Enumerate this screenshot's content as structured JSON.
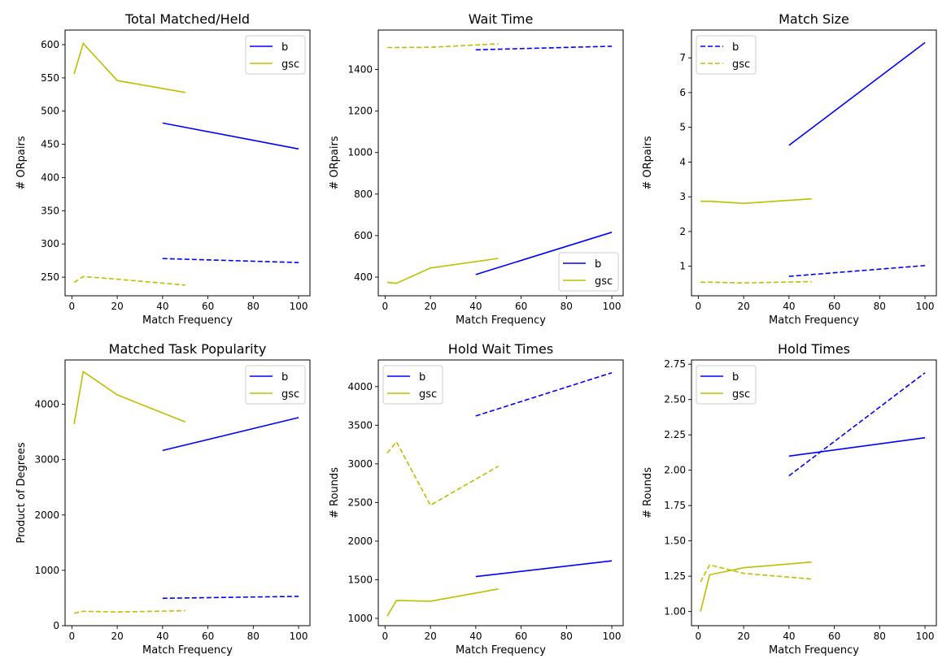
{
  "colors": {
    "b": "#0000ff",
    "gsc": "#bfbf00"
  },
  "chart_data": [
    {
      "type": "line",
      "title": "Total Matched/Held",
      "xlabel": "Match Frequency",
      "ylabel": "# ORpairs",
      "xlim": [
        -3,
        105
      ],
      "ylim": [
        222,
        622
      ],
      "xticks": [
        0,
        20,
        40,
        60,
        80,
        100
      ],
      "yticks": [
        250,
        300,
        350,
        400,
        450,
        500,
        550,
        600
      ],
      "legend": {
        "position": "top-right",
        "entries": [
          {
            "label": "b",
            "color": "b",
            "dash": false
          },
          {
            "label": "gsc",
            "color": "gsc",
            "dash": false
          }
        ]
      },
      "series": [
        {
          "color": "b",
          "dash": false,
          "x": [
            40,
            100
          ],
          "y": [
            482,
            443
          ]
        },
        {
          "color": "b",
          "dash": true,
          "x": [
            40,
            100
          ],
          "y": [
            278,
            272
          ]
        },
        {
          "color": "gsc",
          "dash": false,
          "x": [
            1,
            5,
            20,
            50
          ],
          "y": [
            556,
            602,
            546,
            528
          ]
        },
        {
          "color": "gsc",
          "dash": true,
          "x": [
            1,
            5,
            20,
            50
          ],
          "y": [
            242,
            251,
            247,
            238
          ]
        }
      ]
    },
    {
      "type": "line",
      "title": "Wait Time",
      "xlabel": "Match Frequency",
      "ylabel": "# ORpairs",
      "xlim": [
        -3,
        105
      ],
      "ylim": [
        310,
        1590
      ],
      "xticks": [
        0,
        20,
        40,
        60,
        80,
        100
      ],
      "yticks": [
        400,
        600,
        800,
        1000,
        1200,
        1400
      ],
      "legend": {
        "position": "bottom-right",
        "entries": [
          {
            "label": "b",
            "color": "b",
            "dash": false
          },
          {
            "label": "gsc",
            "color": "gsc",
            "dash": false
          }
        ]
      },
      "series": [
        {
          "color": "b",
          "dash": false,
          "x": [
            40,
            100
          ],
          "y": [
            412,
            616
          ]
        },
        {
          "color": "b",
          "dash": true,
          "x": [
            40,
            100
          ],
          "y": [
            1495,
            1512
          ]
        },
        {
          "color": "gsc",
          "dash": false,
          "x": [
            1,
            5,
            20,
            50
          ],
          "y": [
            375,
            370,
            444,
            490
          ]
        },
        {
          "color": "gsc",
          "dash": true,
          "x": [
            1,
            5,
            20,
            50
          ],
          "y": [
            1506,
            1506,
            1507,
            1524
          ]
        }
      ]
    },
    {
      "type": "line",
      "title": "Match Size",
      "xlabel": "Match Frequency",
      "ylabel": "# ORpairs",
      "xlim": [
        -3,
        105
      ],
      "ylim": [
        0.15,
        7.8
      ],
      "xticks": [
        0,
        20,
        40,
        60,
        80,
        100
      ],
      "yticks": [
        1,
        2,
        3,
        4,
        5,
        6,
        7
      ],
      "legend": {
        "position": "top-left",
        "entries": [
          {
            "label": "b",
            "color": "b",
            "dash": true
          },
          {
            "label": "gsc",
            "color": "gsc",
            "dash": true
          }
        ]
      },
      "series": [
        {
          "color": "b",
          "dash": false,
          "x": [
            40,
            100
          ],
          "y": [
            4.48,
            7.44
          ]
        },
        {
          "color": "b",
          "dash": true,
          "x": [
            40,
            100
          ],
          "y": [
            0.71,
            1.02
          ]
        },
        {
          "color": "gsc",
          "dash": false,
          "x": [
            1,
            5,
            20,
            50
          ],
          "y": [
            2.87,
            2.87,
            2.81,
            2.94
          ]
        },
        {
          "color": "gsc",
          "dash": true,
          "x": [
            1,
            5,
            20,
            50
          ],
          "y": [
            0.54,
            0.54,
            0.52,
            0.56
          ]
        }
      ]
    },
    {
      "type": "line",
      "title": "Matched Task Popularity",
      "xlabel": "Match Frequency",
      "ylabel": "Product of Degrees",
      "xlim": [
        -3,
        105
      ],
      "ylim": [
        0,
        4800
      ],
      "xticks": [
        0,
        20,
        40,
        60,
        80,
        100
      ],
      "yticks": [
        0,
        1000,
        2000,
        3000,
        4000
      ],
      "legend": {
        "position": "top-right",
        "entries": [
          {
            "label": "b",
            "color": "b",
            "dash": false
          },
          {
            "label": "gsc",
            "color": "gsc",
            "dash": false
          }
        ]
      },
      "series": [
        {
          "color": "b",
          "dash": false,
          "x": [
            40,
            100
          ],
          "y": [
            3165,
            3760
          ]
        },
        {
          "color": "b",
          "dash": true,
          "x": [
            40,
            100
          ],
          "y": [
            495,
            530
          ]
        },
        {
          "color": "gsc",
          "dash": false,
          "x": [
            1,
            5,
            20,
            50
          ],
          "y": [
            3640,
            4590,
            4170,
            3680
          ]
        },
        {
          "color": "gsc",
          "dash": true,
          "x": [
            1,
            5,
            20,
            50
          ],
          "y": [
            225,
            260,
            248,
            270
          ]
        }
      ]
    },
    {
      "type": "line",
      "title": "Hold Wait Times",
      "xlabel": "Match Frequency",
      "ylabel": "# Rounds",
      "xlim": [
        -3,
        105
      ],
      "ylim": [
        905,
        4345
      ],
      "xticks": [
        0,
        20,
        40,
        60,
        80,
        100
      ],
      "yticks": [
        1000,
        1500,
        2000,
        2500,
        3000,
        3500,
        4000
      ],
      "legend": {
        "position": "top-left",
        "entries": [
          {
            "label": "b",
            "color": "b",
            "dash": false
          },
          {
            "label": "gsc",
            "color": "gsc",
            "dash": false
          }
        ]
      },
      "series": [
        {
          "color": "b",
          "dash": false,
          "x": [
            40,
            100
          ],
          "y": [
            1540,
            1745
          ]
        },
        {
          "color": "b",
          "dash": true,
          "x": [
            40,
            100
          ],
          "y": [
            3620,
            4180
          ]
        },
        {
          "color": "gsc",
          "dash": false,
          "x": [
            1,
            5,
            20,
            50
          ],
          "y": [
            1030,
            1232,
            1222,
            1380
          ]
        },
        {
          "color": "gsc",
          "dash": true,
          "x": [
            1,
            5,
            20,
            50
          ],
          "y": [
            3140,
            3285,
            2465,
            2970
          ]
        }
      ]
    },
    {
      "type": "line",
      "title": "Hold Times",
      "xlabel": "Match Frequency",
      "ylabel": "# Rounds",
      "xlim": [
        -3,
        105
      ],
      "ylim": [
        0.9,
        2.78
      ],
      "xticks": [
        0,
        20,
        40,
        60,
        80,
        100
      ],
      "yticks": [
        1.0,
        1.25,
        1.5,
        1.75,
        2.0,
        2.25,
        2.5,
        2.75
      ],
      "ytick_decimals": 2,
      "legend": {
        "position": "top-left",
        "entries": [
          {
            "label": "b",
            "color": "b",
            "dash": false
          },
          {
            "label": "gsc",
            "color": "gsc",
            "dash": false
          }
        ]
      },
      "series": [
        {
          "color": "b",
          "dash": false,
          "x": [
            40,
            100
          ],
          "y": [
            2.1,
            2.23
          ]
        },
        {
          "color": "b",
          "dash": true,
          "x": [
            40,
            100
          ],
          "y": [
            1.96,
            2.69
          ]
        },
        {
          "color": "gsc",
          "dash": false,
          "x": [
            1,
            5,
            20,
            50
          ],
          "y": [
            1.0,
            1.26,
            1.31,
            1.35
          ]
        },
        {
          "color": "gsc",
          "dash": true,
          "x": [
            1,
            5,
            20,
            50
          ],
          "y": [
            1.21,
            1.33,
            1.27,
            1.23
          ]
        }
      ]
    }
  ]
}
